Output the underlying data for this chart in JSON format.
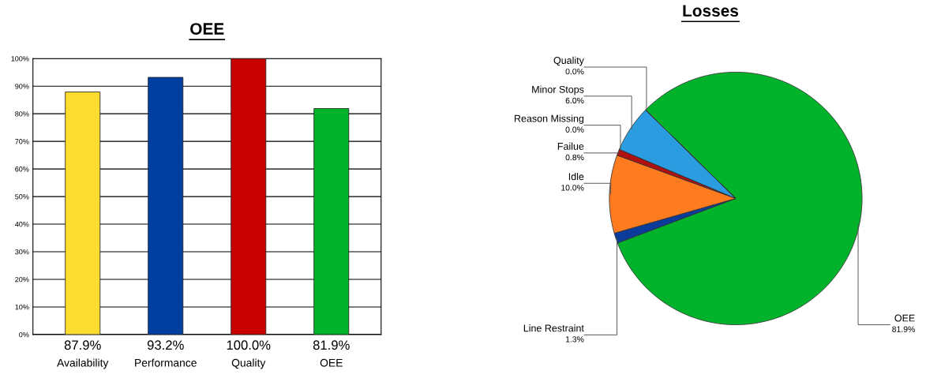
{
  "chart_data": [
    {
      "type": "bar",
      "title": "OEE",
      "categories": [
        "Availability",
        "Performance",
        "Quality",
        "OEE"
      ],
      "values": [
        87.9,
        93.2,
        100.0,
        81.9
      ],
      "colors": [
        "#fcdc2e",
        "#003f9f",
        "#c80000",
        "#00b32a"
      ],
      "value_labels": [
        "87.9%",
        "93.2%",
        "100.0%",
        "81.9%"
      ],
      "ylim": [
        0,
        100
      ],
      "yticks": [
        {
          "value": 0,
          "label": "0%"
        },
        {
          "value": 10,
          "label": "10%"
        },
        {
          "value": 20,
          "label": "20%"
        },
        {
          "value": 30,
          "label": "30%"
        },
        {
          "value": 40,
          "label": "40%"
        },
        {
          "value": 50,
          "label": "50%"
        },
        {
          "value": 60,
          "label": "60%"
        },
        {
          "value": 70,
          "label": "70%"
        },
        {
          "value": 80,
          "label": "80%"
        },
        {
          "value": 90,
          "label": "90%"
        },
        {
          "value": 100,
          "label": "100%"
        }
      ],
      "grid": "y",
      "legend": false
    },
    {
      "type": "pie",
      "title": "Losses",
      "categories": [
        "OEE",
        "Line Restraint",
        "Idle",
        "Failue",
        "Reason Missing",
        "Minor Stops",
        "Quality"
      ],
      "values": [
        81.9,
        1.3,
        10.0,
        0.8,
        0.0,
        6.0,
        0.0
      ],
      "colors": [
        "#00b32a",
        "#0b3c9c",
        "#ff7b20",
        "#b01010",
        "#808080",
        "#2c9ce0",
        "#c0c0c0"
      ],
      "value_labels": [
        "81.9%",
        "1.3%",
        "10.0%",
        "0.8%",
        "0.0%",
        "6.0%",
        "0.0%"
      ],
      "legend": false
    }
  ]
}
